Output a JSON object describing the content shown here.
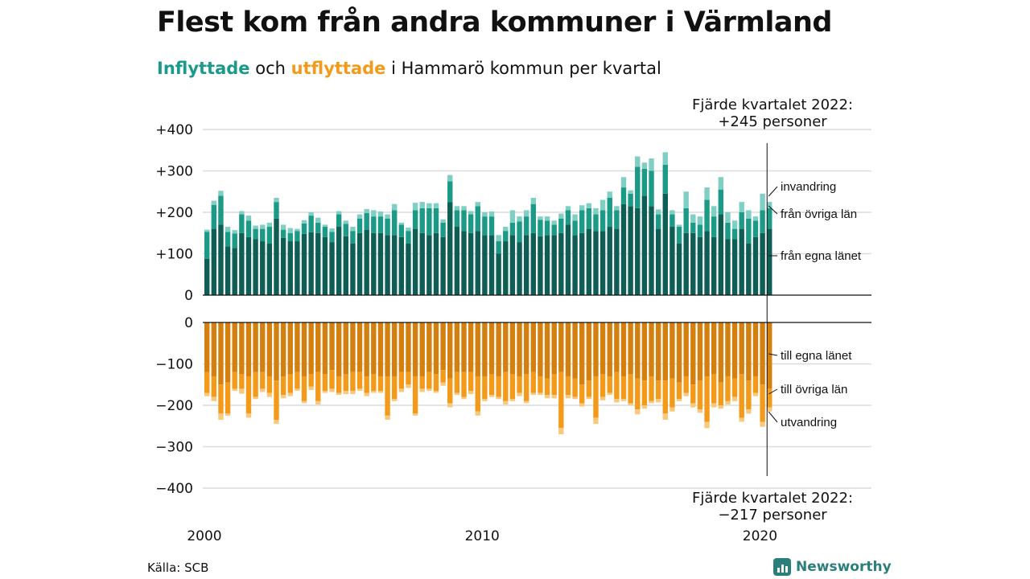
{
  "title": "Flest kom från andra kommuner i Värmland",
  "subtitle": {
    "in_word": "Inflyttade",
    "mid": "och",
    "out_word": "utflyttade",
    "rest": "i Hammarö kommun per kvartal"
  },
  "annotation_top": {
    "line1": "Fjärde kvartalet 2022:",
    "line2": "+245 personer"
  },
  "annotation_bottom": {
    "line1": "Fjärde kvartalet 2022:",
    "line2": "−217 personer"
  },
  "source": "Källa: SCB",
  "brand": "Newsworthy",
  "colors": {
    "in_dark": "#0f5e55",
    "in_mid": "#1c9a88",
    "in_light": "#7fcfc4",
    "out_dark": "#d4800f",
    "out_mid": "#f49a1a",
    "out_light": "#f8c97c",
    "accent_in": "#1a9a8a",
    "accent_out": "#f49a1a"
  },
  "chart_data": {
    "type": "bar",
    "x_start_year": 2000,
    "quarters_per_year": 4,
    "x_ticks": [
      "2000",
      "2010",
      "2020"
    ],
    "top_panel": {
      "yticks": [
        "+400",
        "+300",
        "+200",
        "+100",
        "0"
      ],
      "ylim": [
        0,
        400
      ],
      "series": [
        {
          "name": "från egna länet",
          "values": [
            88,
            160,
            170,
            118,
            114,
            150,
            140,
            135,
            130,
            125,
            185,
            138,
            130,
            130,
            148,
            152,
            150,
            140,
            128,
            165,
            142,
            125,
            150,
            158,
            150,
            150,
            145,
            145,
            140,
            125,
            160,
            150,
            145,
            150,
            140,
            225,
            165,
            155,
            150,
            155,
            145,
            145,
            100,
            130,
            145,
            128,
            145,
            150,
            142,
            145,
            145,
            150,
            170,
            145,
            150,
            160,
            155,
            155,
            165,
            160,
            220,
            215,
            210,
            240,
            215,
            160,
            245,
            165,
            125,
            150,
            150,
            140,
            155,
            140,
            195,
            135,
            135,
            160,
            125,
            140,
            150,
            160
          ]
        },
        {
          "name": "från övriga län",
          "values": [
            65,
            58,
            70,
            35,
            35,
            45,
            40,
            25,
            30,
            40,
            40,
            20,
            20,
            25,
            25,
            40,
            25,
            25,
            25,
            30,
            30,
            30,
            35,
            40,
            40,
            40,
            40,
            60,
            30,
            30,
            45,
            60,
            65,
            60,
            35,
            50,
            40,
            50,
            45,
            60,
            45,
            45,
            30,
            25,
            30,
            50,
            45,
            70,
            40,
            35,
            25,
            35,
            35,
            35,
            55,
            50,
            40,
            50,
            70,
            45,
            40,
            30,
            100,
            65,
            85,
            35,
            70,
            30,
            40,
            60,
            25,
            30,
            75,
            50,
            60,
            40,
            25,
            40,
            60,
            40,
            55,
            50
          ]
        },
        {
          "name": "invandring",
          "values": [
            5,
            10,
            12,
            12,
            8,
            8,
            12,
            8,
            10,
            10,
            10,
            12,
            12,
            5,
            8,
            8,
            12,
            5,
            8,
            8,
            8,
            10,
            10,
            10,
            15,
            12,
            10,
            15,
            5,
            8,
            18,
            15,
            12,
            12,
            8,
            15,
            10,
            10,
            8,
            10,
            10,
            12,
            15,
            10,
            30,
            12,
            15,
            15,
            8,
            10,
            10,
            12,
            10,
            15,
            12,
            12,
            15,
            25,
            15,
            10,
            25,
            8,
            25,
            15,
            30,
            12,
            30,
            10,
            5,
            40,
            20,
            20,
            30,
            25,
            30,
            25,
            20,
            25,
            20,
            10,
            40,
            15
          ]
        }
      ]
    },
    "bottom_panel": {
      "yticks": [
        "0",
        "−100",
        "−200",
        "−300",
        "−400"
      ],
      "ylim": [
        -400,
        0
      ],
      "series": [
        {
          "name": "till egna länet",
          "values": [
            -120,
            -130,
            -150,
            -145,
            -120,
            -125,
            -130,
            -120,
            -120,
            -130,
            -140,
            -130,
            -125,
            -120,
            -130,
            -125,
            -120,
            -125,
            -115,
            -130,
            -125,
            -120,
            -120,
            -130,
            -125,
            -130,
            -130,
            -130,
            -120,
            -120,
            -130,
            -130,
            -120,
            -125,
            -115,
            -135,
            -120,
            -120,
            -120,
            -130,
            -130,
            -125,
            -130,
            -120,
            -125,
            -130,
            -125,
            -120,
            -130,
            -135,
            -125,
            -120,
            -130,
            -135,
            -150,
            -140,
            -130,
            -125,
            -130,
            -120,
            -130,
            -125,
            -135,
            -140,
            -130,
            -140,
            -140,
            -135,
            -145,
            -130,
            -150,
            -140,
            -130,
            -125,
            -145,
            -130,
            -135,
            -125,
            -140,
            -130,
            -150,
            -160
          ]
        },
        {
          "name": "till övriga län",
          "values": [
            -50,
            -50,
            -70,
            -75,
            -40,
            -35,
            -90,
            -60,
            -40,
            -40,
            -95,
            -45,
            -45,
            -40,
            -60,
            -30,
            -70,
            -40,
            -45,
            -40,
            -40,
            -45,
            -40,
            -40,
            -40,
            -35,
            -95,
            -55,
            -40,
            -30,
            -90,
            -30,
            -40,
            -40,
            -30,
            -60,
            -50,
            -60,
            -45,
            -85,
            -55,
            -50,
            -50,
            -70,
            -60,
            -40,
            -65,
            -50,
            -40,
            -40,
            -50,
            -135,
            -45,
            -45,
            -45,
            -40,
            -100,
            -55,
            -40,
            -65,
            -55,
            -70,
            -75,
            -60,
            -60,
            -45,
            -80,
            -70,
            -40,
            -40,
            -45,
            -70,
            -110,
            -70,
            -55,
            -60,
            -45,
            -105,
            -70,
            -40,
            -90,
            -45
          ]
        },
        {
          "name": "utvandring",
          "values": [
            -8,
            -10,
            -15,
            -5,
            -5,
            -12,
            -10,
            -5,
            -8,
            -10,
            -10,
            -8,
            -8,
            -5,
            -5,
            -8,
            -8,
            -5,
            -8,
            -5,
            -8,
            -8,
            -5,
            -8,
            -5,
            -5,
            -10,
            -5,
            -8,
            -8,
            -5,
            -8,
            -5,
            -5,
            -8,
            -10,
            -5,
            -5,
            -8,
            -10,
            -5,
            -5,
            -5,
            -8,
            -5,
            -8,
            -5,
            -5,
            -5,
            -8,
            -8,
            -15,
            -8,
            -5,
            -8,
            -5,
            -15,
            -8,
            -5,
            -8,
            -5,
            -5,
            -12,
            -8,
            -5,
            -8,
            -15,
            -10,
            -5,
            -8,
            -10,
            -8,
            -15,
            -10,
            -8,
            -8,
            -10,
            -10,
            -10,
            -8,
            -12,
            -10
          ]
        }
      ]
    },
    "top_labels": [
      "invandring",
      "från övriga län",
      "från egna länet"
    ],
    "bottom_labels": [
      "till egna länet",
      "till övriga län",
      "utvandring"
    ],
    "grid": true
  }
}
